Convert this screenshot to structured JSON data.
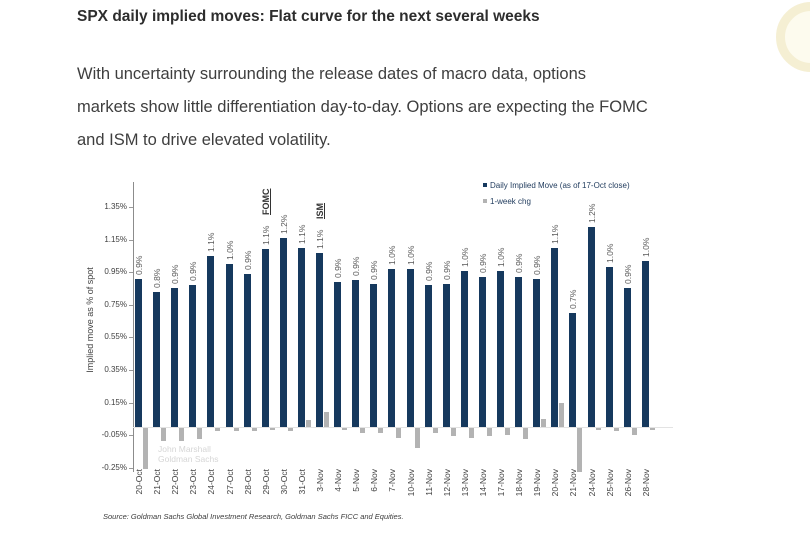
{
  "header": {
    "title": "SPX daily implied moves: Flat curve for the next several weeks"
  },
  "intro": {
    "lines": [
      "With uncertainty surrounding the release dates of macro data, options",
      "markets show little differentiation day-to-day. Options are expecting the FOMC",
      "and ISM to drive elevated volatility."
    ]
  },
  "chart_data": {
    "type": "bar",
    "title": "",
    "xlabel": "",
    "ylabel": "Implied move as % of spot",
    "y_ticks": [
      "1.35%",
      "1.15%",
      "0.95%",
      "0.75%",
      "0.55%",
      "0.35%",
      "0.15%",
      "-0.05%",
      "-0.25%"
    ],
    "ylim": [
      -0.35,
      1.45
    ],
    "grid": false,
    "legend_position": "top-right",
    "legend": [
      {
        "label": "Daily Implied Move (as of 17-Oct close)",
        "color": "#16395e"
      },
      {
        "label": "1-week chg",
        "color": "#b3b3b3"
      }
    ],
    "categories": [
      "20-Oct",
      "21-Oct",
      "22-Oct",
      "23-Oct",
      "24-Oct",
      "27-Oct",
      "28-Oct",
      "29-Oct",
      "30-Oct",
      "31-Oct",
      "3-Nov",
      "4-Nov",
      "5-Nov",
      "6-Nov",
      "7-Nov",
      "10-Nov",
      "11-Nov",
      "12-Nov",
      "13-Nov",
      "14-Nov",
      "17-Nov",
      "18-Nov",
      "19-Nov",
      "20-Nov",
      "21-Nov",
      "24-Nov",
      "25-Nov",
      "26-Nov",
      "28-Nov"
    ],
    "series": [
      {
        "name": "Daily Implied Move (as of 17-Oct close)",
        "color": "#16395e",
        "values": [
          0.91,
          0.83,
          0.85,
          0.87,
          1.05,
          1.0,
          0.94,
          1.09,
          1.16,
          1.1,
          1.07,
          0.89,
          0.9,
          0.88,
          0.97,
          0.97,
          0.87,
          0.88,
          0.96,
          0.92,
          0.96,
          0.92,
          0.91,
          1.1,
          0.7,
          1.23,
          0.98,
          0.85,
          1.02
        ],
        "labels": [
          "0.9%",
          "0.8%",
          "0.9%",
          "0.9%",
          "1.1%",
          "1.0%",
          "0.9%",
          "1.1%",
          "1.2%",
          "1.1%",
          "1.1%",
          "0.9%",
          "0.9%",
          "0.9%",
          "1.0%",
          "1.0%",
          "0.9%",
          "0.9%",
          "1.0%",
          "0.9%",
          "1.0%",
          "0.9%",
          "0.9%",
          "1.1%",
          "0.7%",
          "1.2%",
          "1.0%",
          "0.9%",
          "1.0%"
        ]
      },
      {
        "name": "1-week chg",
        "color": "#b3b3b3",
        "values": [
          -0.25,
          -0.08,
          -0.08,
          -0.07,
          -0.02,
          -0.02,
          -0.02,
          -0.01,
          -0.02,
          0.04,
          0.09,
          -0.01,
          -0.03,
          -0.03,
          -0.06,
          -0.12,
          -0.03,
          -0.05,
          -0.06,
          -0.05,
          -0.04,
          -0.07,
          0.05,
          0.15,
          -0.27,
          -0.01,
          -0.02,
          -0.04,
          -0.01
        ]
      }
    ],
    "annotations": [
      {
        "index": 7,
        "category": "29-Oct",
        "text": "FOMC"
      },
      {
        "index": 10,
        "category": "3-Nov",
        "text": "ISM"
      }
    ]
  },
  "watermark": {
    "line1": "John Marshall",
    "line2": "Goldman Sachs"
  },
  "source": "Source: Goldman Sachs Global Investment Research, Goldman Sachs FICC and Equities."
}
